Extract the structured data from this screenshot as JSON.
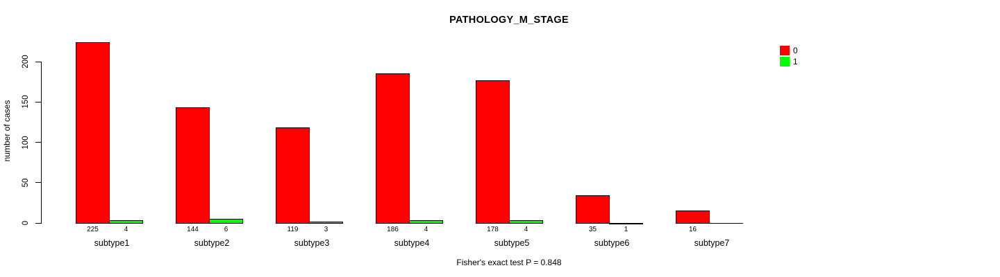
{
  "chart_data": {
    "type": "bar",
    "title": "PATHOLOGY_M_STAGE",
    "ylabel": "number of cases",
    "xlabel": "",
    "footer": "Fisher's exact test P = 0.848",
    "categories": [
      "subtype1",
      "subtype2",
      "subtype3",
      "subtype4",
      "subtype5",
      "subtype6",
      "subtype7"
    ],
    "series": [
      {
        "name": "0",
        "color": "#ff0000",
        "values": [
          225,
          144,
          119,
          186,
          178,
          35,
          16
        ],
        "labels": [
          "225",
          "144",
          "119",
          "186",
          "178",
          "35",
          "16"
        ]
      },
      {
        "name": "1",
        "color": "#00ff00",
        "values": [
          4,
          6,
          3,
          4,
          4,
          1,
          0
        ],
        "labels": [
          "4",
          "6",
          "3",
          "4",
          "4",
          "1",
          ""
        ]
      }
    ],
    "yticks": [
      0,
      50,
      100,
      150,
      200
    ],
    "ylim": [
      0,
      235
    ],
    "grid": false,
    "legend_position": "top-right",
    "bar_border_color": "#000000",
    "background_color": "#ffffff"
  }
}
